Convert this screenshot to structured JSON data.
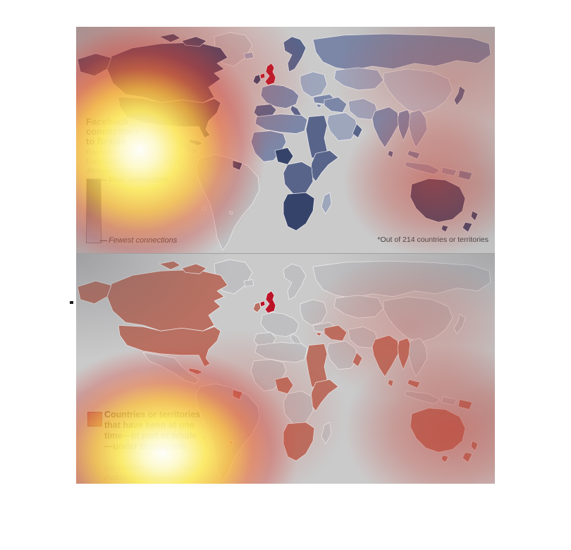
{
  "top_map": {
    "title": "Facebook connections to Britain",
    "subtitle": "Ranked* by total foreign Facebook connections, as of January 1st 2012",
    "legend_most": "Most connections",
    "legend_fewest": "Fewest connections",
    "footnote": "*Out of 214 countries or territories"
  },
  "bottom_map": {
    "legend_bold": "Countries or territories that have been at one time—in part or whole—under British rule",
    "legend_note": "(on modern borders, not including minor claims)"
  },
  "colors": {
    "panel_bg": "#d4d4d4",
    "uk_red": "#c3081f",
    "empire_salmon": "#c1705f",
    "no_data_gray": "#c7c7c9",
    "navy_scale": [
      "#2e3d68",
      "#55628c",
      "#7d89ad",
      "#a3abc4",
      "#c2c6d2"
    ],
    "legend_bar_top": "#1f2c52",
    "legend_bar_bottom": "#c9cbd3",
    "heat_core_yellow": "#ffee64",
    "heat_red": "#d14437"
  },
  "chart_data": [
    {
      "type": "map",
      "title": "Facebook connections to Britain",
      "subtitle": "Ranked* by total foreign Facebook connections, as of January 1st 2012",
      "footnote": "*Out of 214 countries or territories",
      "legend": {
        "top_label": "Most connections",
        "bottom_label": "Fewest connections",
        "scale": "dark navy = most connections, pale gray = fewest"
      },
      "highlight": "United Kingdom shown in bright red",
      "most_connected_regions": [
        "Canada",
        "United States",
        "Ireland",
        "Australia",
        "New Zealand",
        "Guyana",
        "Nigeria and Ghana",
        "Southern Africa",
        "Japan"
      ],
      "least_connected_regions": [
        "Greenland",
        "South America",
        "Mexico",
        "China",
        "Central Asia"
      ]
    },
    {
      "type": "map",
      "title": "Countries or territories that have been at one time—in part or whole—under British rule",
      "note": "(on modern borders, not including minor claims)",
      "highlight": "United Kingdom shown in bright red",
      "highlighted_regions": [
        "Canada",
        "Alaska",
        "United States",
        "Caribbean",
        "Guyana",
        "Ireland",
        "Cyprus",
        "Levant and Iraq",
        "Gulf and Oman",
        "Egypt and Sudan",
        "Nigeria and Ghana",
        "East Africa and Horn",
        "Southern Africa",
        "India",
        "Sri Lanka",
        "Myanmar",
        "Malaysia",
        "Papua New Guinea",
        "Australia",
        "New Zealand",
        "South Atlantic islands"
      ]
    }
  ],
  "regions": [
    {
      "id": "greenland",
      "top": "none",
      "bottom": "none"
    },
    {
      "id": "canada",
      "top": "c1",
      "bottom": "emp"
    },
    {
      "id": "canada_islands",
      "top": "c1",
      "bottom": "emp"
    },
    {
      "id": "canada_islands2",
      "top": "c1",
      "bottom": "emp"
    },
    {
      "id": "alaska",
      "top": "c1",
      "bottom": "emp"
    },
    {
      "id": "usa",
      "top": "c1",
      "bottom": "emp"
    },
    {
      "id": "mexico_ca",
      "top": "c5",
      "bottom": "none"
    },
    {
      "id": "caribbean",
      "top": "c2",
      "bottom": "emp"
    },
    {
      "id": "south_america",
      "top": "none",
      "bottom": "none"
    },
    {
      "id": "guyana",
      "top": "c1",
      "bottom": "emp"
    },
    {
      "id": "uk",
      "top": "uk",
      "bottom": "uk"
    },
    {
      "id": "uk_ni",
      "top": "uk",
      "bottom": "uk"
    },
    {
      "id": "ireland",
      "top": "c1",
      "bottom": "emp"
    },
    {
      "id": "iceland",
      "top": "c4",
      "bottom": "none"
    },
    {
      "id": "scandinavia",
      "top": "c2",
      "bottom": "none"
    },
    {
      "id": "europe_west",
      "top": "c3",
      "bottom": "none"
    },
    {
      "id": "iberia",
      "top": "c2",
      "bottom": "none"
    },
    {
      "id": "italy",
      "top": "c2",
      "bottom": "none"
    },
    {
      "id": "europe_east",
      "top": "c4",
      "bottom": "none"
    },
    {
      "id": "turkey",
      "top": "c3",
      "bottom": "none"
    },
    {
      "id": "russia",
      "top": "c3",
      "bottom": "none"
    },
    {
      "id": "central_asia",
      "top": "c4",
      "bottom": "none"
    },
    {
      "id": "china",
      "top": "c5",
      "bottom": "none"
    },
    {
      "id": "japan",
      "top": "c2",
      "bottom": "none"
    },
    {
      "id": "middle_east_iran",
      "top": "c4",
      "bottom": "none"
    },
    {
      "id": "levant_iraq",
      "top": "c3",
      "bottom": "emp"
    },
    {
      "id": "arabia",
      "top": "c4",
      "bottom": "none"
    },
    {
      "id": "gulf_oman",
      "top": "c2",
      "bottom": "emp"
    },
    {
      "id": "egypt_sudan",
      "top": "c2",
      "bottom": "emp"
    },
    {
      "id": "north_africa",
      "top": "c3",
      "bottom": "none"
    },
    {
      "id": "west_africa",
      "top": "c3",
      "bottom": "none"
    },
    {
      "id": "nigeria_ghana",
      "top": "c1",
      "bottom": "emp"
    },
    {
      "id": "horn_east_africa",
      "top": "c2",
      "bottom": "emp"
    },
    {
      "id": "central_africa",
      "top": "c2",
      "bottom": "none"
    },
    {
      "id": "southern_africa",
      "top": "c1",
      "bottom": "emp"
    },
    {
      "id": "madagascar",
      "top": "c4",
      "bottom": "none"
    },
    {
      "id": "india",
      "top": "c3",
      "bottom": "emp"
    },
    {
      "id": "sri_lanka",
      "top": "c2",
      "bottom": "emp"
    },
    {
      "id": "myanmar",
      "top": "c3",
      "bottom": "emp"
    },
    {
      "id": "indochina",
      "top": "c4",
      "bottom": "none"
    },
    {
      "id": "malaysia",
      "top": "c3",
      "bottom": "emp"
    },
    {
      "id": "indonesia",
      "top": "c4",
      "bottom": "none"
    },
    {
      "id": "png",
      "top": "c3",
      "bottom": "emp"
    },
    {
      "id": "australia",
      "top": "c1",
      "bottom": "emp"
    },
    {
      "id": "tasmania",
      "top": "c1",
      "bottom": "emp"
    },
    {
      "id": "new_zealand_n",
      "top": "c1",
      "bottom": "emp"
    },
    {
      "id": "new_zealand_s",
      "top": "c1",
      "bottom": "emp"
    },
    {
      "id": "cyprus",
      "top": "c3",
      "bottom": "emp"
    },
    {
      "id": "atlantic_dot1",
      "top": "none",
      "bottom": "emp"
    },
    {
      "id": "atlantic_dot2",
      "top": "none",
      "bottom": "emp"
    }
  ]
}
